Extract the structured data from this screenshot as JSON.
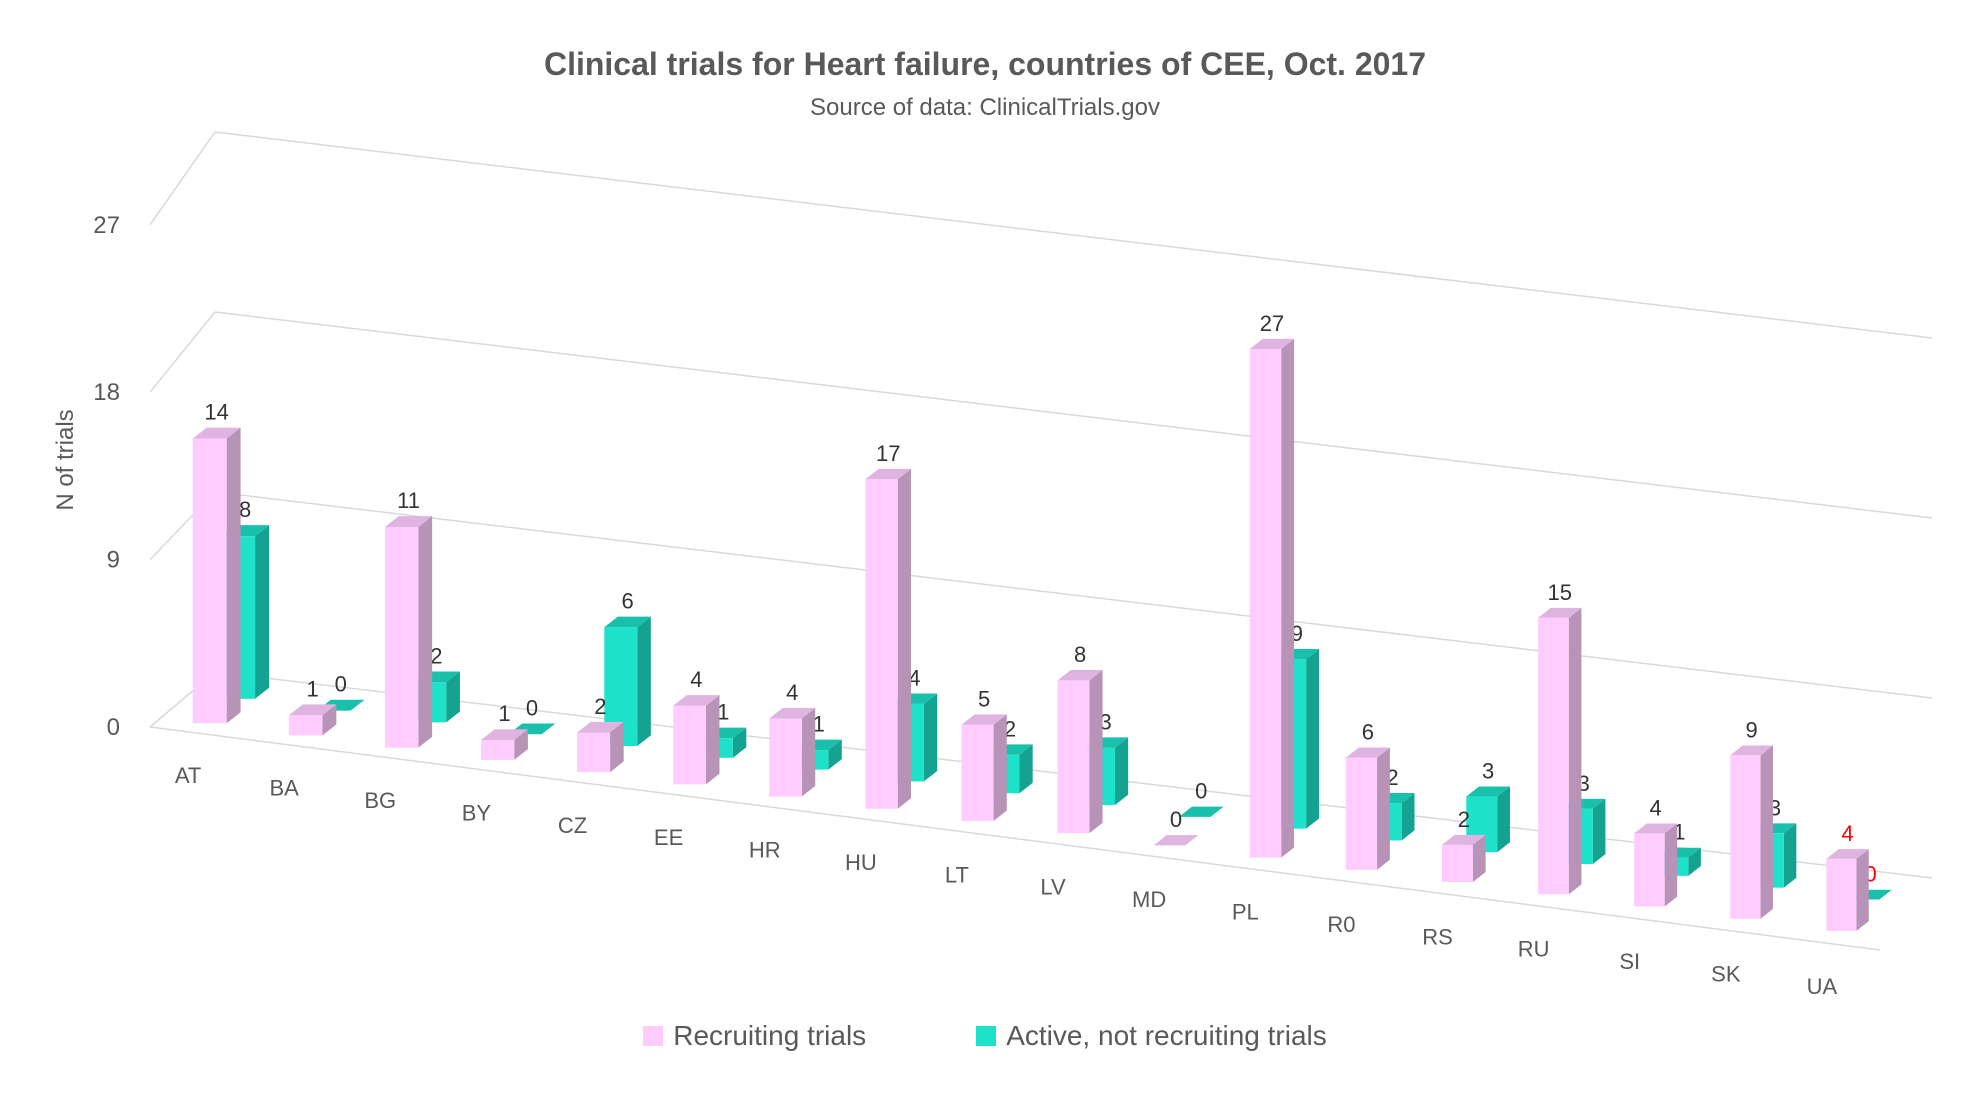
{
  "chart_data": {
    "type": "bar",
    "title": "Clinical trials for Heart failure, countries of CEE, Oct. 2017",
    "subtitle": "Source of data: ClinicalTrials.gov",
    "ylabel": "N of trials",
    "xlabel": "",
    "categories": [
      "AT",
      "BA",
      "BG",
      "BY",
      "CZ",
      "EE",
      "HR",
      "HU",
      "LT",
      "LV",
      "MD",
      "PL",
      "R0",
      "RS",
      "RU",
      "SI",
      "SK",
      "UA"
    ],
    "series": [
      {
        "name": "Recruiting trials",
        "values": [
          14,
          1,
          11,
          1,
          2,
          4,
          4,
          17,
          5,
          8,
          0,
          27,
          6,
          2,
          15,
          4,
          9,
          4
        ],
        "color": "#FFCCFF"
      },
      {
        "name": "Active, not recruiting trials",
        "values": [
          8,
          0,
          2,
          0,
          6,
          1,
          1,
          4,
          2,
          3,
          0,
          9,
          2,
          3,
          3,
          1,
          3,
          0
        ],
        "color": "#1DE2C9"
      }
    ],
    "yticks": [
      "0",
      "9",
      "18",
      "27"
    ],
    "ylim": [
      0,
      27
    ],
    "grid": true,
    "legend": "bottom",
    "highlight_color": "#FF0000"
  }
}
